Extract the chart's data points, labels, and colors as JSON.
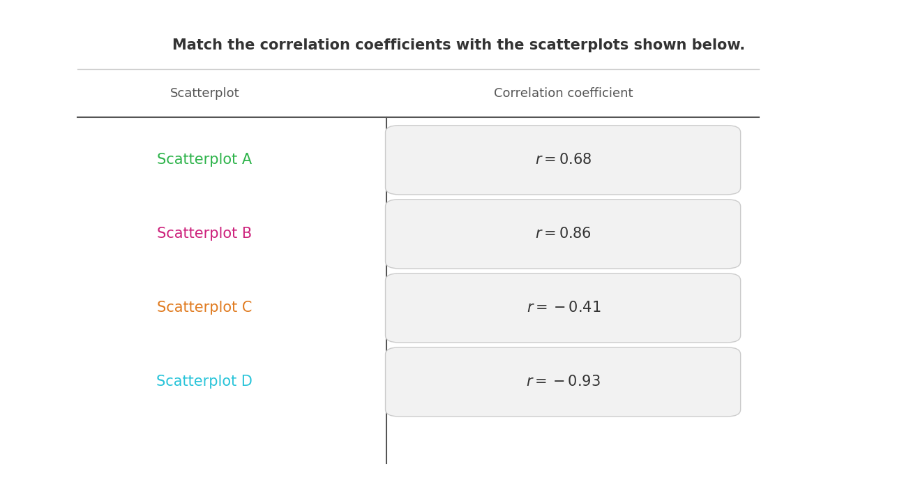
{
  "title": "Match the correlation coefficients with the scatterplots shown below.",
  "title_fontsize": 15,
  "title_color": "#333333",
  "title_fontweight": "bold",
  "header_scatterplot": "Scatterplot",
  "header_correlation": "Correlation coefficient",
  "header_fontsize": 13,
  "header_color": "#555555",
  "rows": [
    {
      "label": "Scatterplot A",
      "color": "#2db34a",
      "value": "r = 0.68"
    },
    {
      "label": "Scatterplot B",
      "color": "#cc1f7a",
      "value": "r = 0.86"
    },
    {
      "label": "Scatterplot C",
      "color": "#e07b20",
      "value": "r = -0.41"
    },
    {
      "label": "Scatterplot D",
      "color": "#29c4d9",
      "value": "r = -0.93"
    }
  ],
  "label_fontsize": 15,
  "value_fontsize": 15,
  "background_color": "#ffffff",
  "box_color": "#f2f2f2",
  "box_edge_color": "#cccccc",
  "rule_color_light": "#bbbbbb",
  "rule_color_dark": "#555555",
  "divider_color": "#555555",
  "top_line_color": "#cccccc"
}
